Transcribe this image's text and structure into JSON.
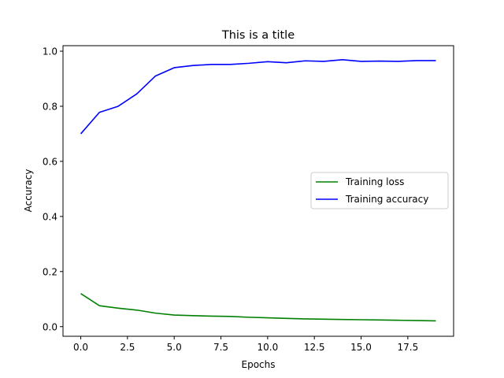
{
  "chart_data": {
    "type": "line",
    "title": "This is a title",
    "xlabel": "Epochs",
    "ylabel": "Accuracy",
    "xlim": [
      -0.95,
      19.95
    ],
    "ylim": [
      -0.035,
      1.02
    ],
    "xticks": [
      0,
      2.5,
      5,
      7.5,
      10,
      12.5,
      15,
      17.5
    ],
    "xtick_labels": [
      "0.0",
      "2.5",
      "5.0",
      "7.5",
      "10.0",
      "12.5",
      "15.0",
      "17.5"
    ],
    "yticks": [
      0,
      0.2,
      0.4,
      0.6,
      0.8,
      1.0
    ],
    "ytick_labels": [
      "0.0",
      "0.2",
      "0.4",
      "0.6",
      "0.8",
      "1.0"
    ],
    "grid": false,
    "legend_position": "center-right",
    "x": [
      0,
      1,
      2,
      3,
      4,
      5,
      6,
      7,
      8,
      9,
      10,
      11,
      12,
      13,
      14,
      15,
      16,
      17,
      18,
      19
    ],
    "series": [
      {
        "name": "Training loss",
        "color": "#008000",
        "values": [
          0.12,
          0.076,
          0.067,
          0.06,
          0.049,
          0.042,
          0.04,
          0.038,
          0.037,
          0.034,
          0.032,
          0.03,
          0.028,
          0.027,
          0.026,
          0.025,
          0.024,
          0.023,
          0.022,
          0.021
        ]
      },
      {
        "name": "Training accuracy",
        "color": "#0000ff",
        "values": [
          0.7,
          0.778,
          0.8,
          0.845,
          0.91,
          0.94,
          0.948,
          0.952,
          0.952,
          0.956,
          0.962,
          0.958,
          0.965,
          0.963,
          0.969,
          0.963,
          0.964,
          0.963,
          0.966,
          0.966
        ]
      }
    ]
  }
}
